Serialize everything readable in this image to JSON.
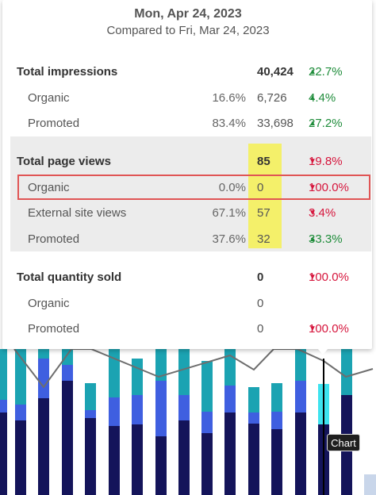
{
  "header": {
    "date": "Mon, Apr 24, 2023",
    "comparison": "Compared to Fri, Mar 24, 2023"
  },
  "sections": [
    {
      "label": "Total impressions",
      "value": "40,424",
      "change": "22.7%",
      "direction": "up",
      "rows": [
        {
          "label": "Organic",
          "pct": "16.6%",
          "value": "6,726",
          "change": "4.4%",
          "direction": "up"
        },
        {
          "label": "Promoted",
          "pct": "83.4%",
          "value": "33,698",
          "change": "27.2%",
          "direction": "up"
        }
      ]
    },
    {
      "label": "Total page views",
      "value": "85",
      "change": "19.8%",
      "direction": "down",
      "rows": [
        {
          "label": "Organic",
          "pct": "0.0%",
          "value": "0",
          "change": "100.0%",
          "direction": "down"
        },
        {
          "label": "External site views",
          "pct": "67.1%",
          "value": "57",
          "change": "3.4%",
          "direction": "down"
        },
        {
          "label": "Promoted",
          "pct": "37.6%",
          "value": "32",
          "change": "33.3%",
          "direction": "up"
        }
      ]
    },
    {
      "label": "Total quantity sold",
      "value": "0",
      "change": "100.0%",
      "direction": "down",
      "rows": [
        {
          "label": "Organic",
          "pct": "",
          "value": "0",
          "change": "",
          "direction": ""
        },
        {
          "label": "Promoted",
          "pct": "",
          "value": "0",
          "change": "100.0%",
          "direction": "down"
        }
      ]
    }
  ],
  "chart_tag": "Chart",
  "colors": {
    "up": "#1e8c3a",
    "down": "#d6153c",
    "bar_navy": "#14145a",
    "bar_blue": "#3f5fe0",
    "bar_teal": "#1ba3b2",
    "bar_selected": "#3ee3ef",
    "highlight": "#f4f06a",
    "outline": "#e05555"
  },
  "icons": {
    "up": "triangle-up-icon",
    "down": "triangle-down-icon"
  }
}
